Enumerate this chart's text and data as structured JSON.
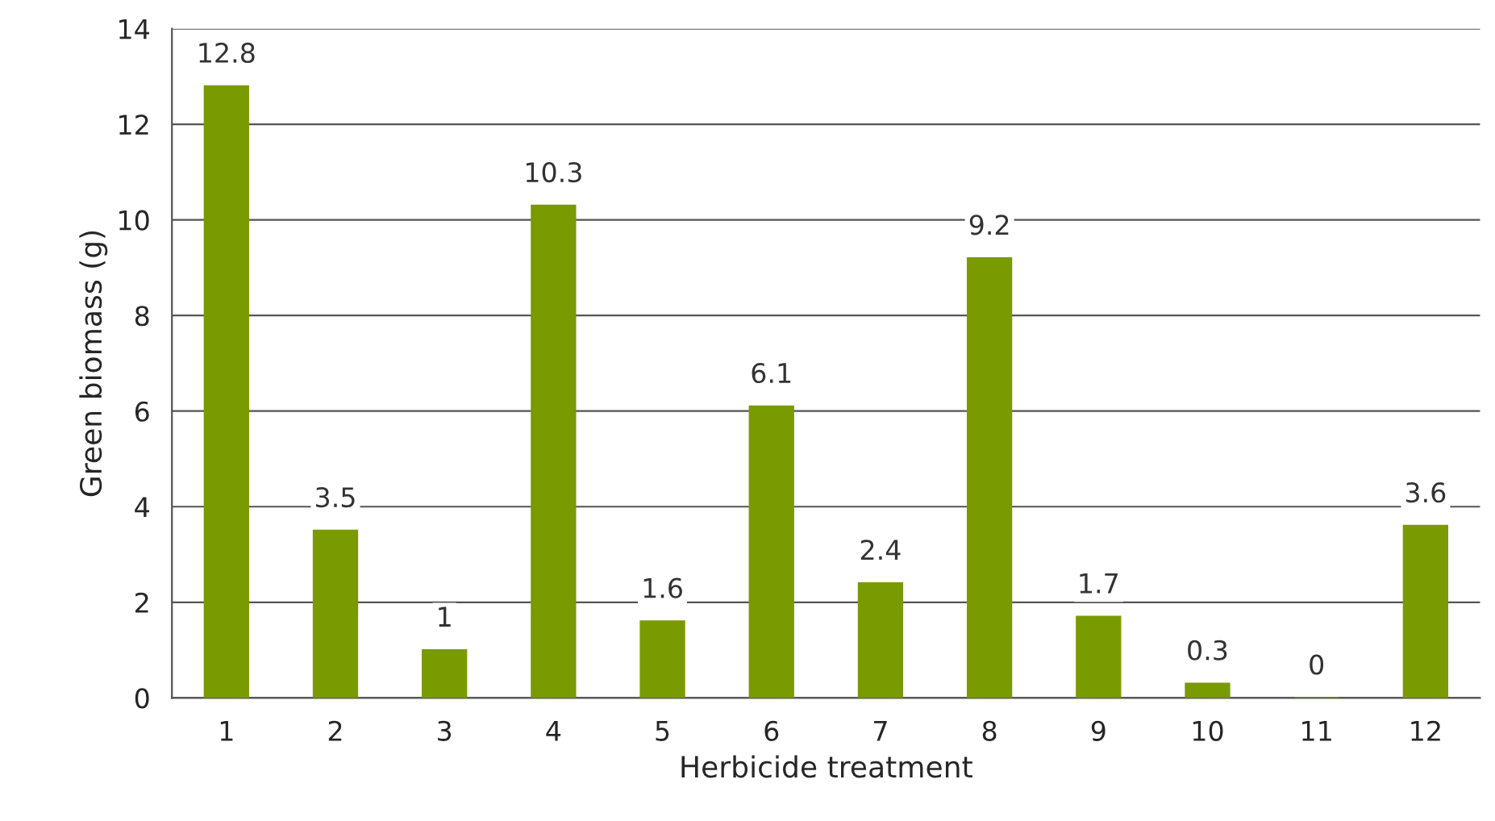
{
  "chart_data": {
    "type": "bar",
    "xlabel": "Herbicide treatment",
    "ylabel": "Green biomass (g)",
    "categories": [
      "1",
      "2",
      "3",
      "4",
      "5",
      "6",
      "7",
      "8",
      "9",
      "10",
      "11",
      "12"
    ],
    "values": [
      12.8,
      3.5,
      1,
      10.3,
      1.6,
      6.1,
      2.4,
      9.2,
      1.7,
      0.3,
      0,
      3.6
    ],
    "color": "#7a9a01",
    "ylim": [
      0,
      14
    ],
    "yticks": [
      0,
      2,
      4,
      6,
      8,
      10,
      12,
      14
    ],
    "grid": "y",
    "data_labels": true
  }
}
